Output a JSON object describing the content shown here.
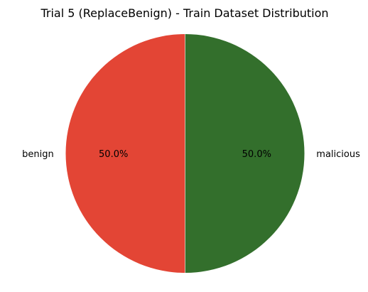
{
  "chart_data": {
    "type": "pie",
    "title": "Trial 5 (ReplaceBenign) - Train Dataset Distribution",
    "slices": [
      {
        "label": "benign",
        "value": 50.0,
        "pct_label": "50.0%",
        "color": "#e34535"
      },
      {
        "label": "malicious",
        "value": 50.0,
        "pct_label": "50.0%",
        "color": "#336f2c"
      }
    ]
  }
}
